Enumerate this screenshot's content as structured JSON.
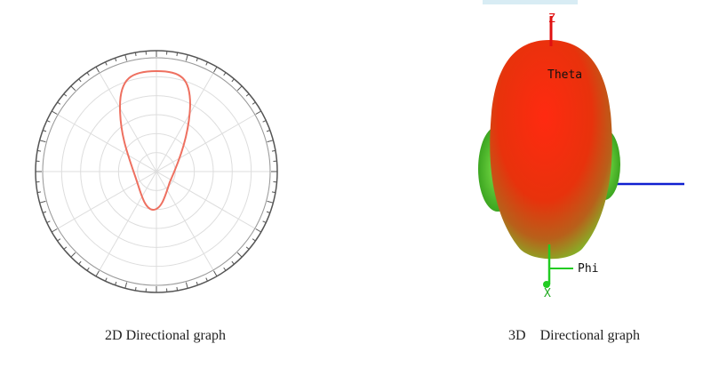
{
  "figures": [
    {
      "caption": "2D Directional graph"
    },
    {
      "caption": "3D    Directional graph",
      "labels": {
        "z": "Z",
        "theta": "Theta",
        "phi": "Phi",
        "x": "X"
      }
    }
  ]
}
